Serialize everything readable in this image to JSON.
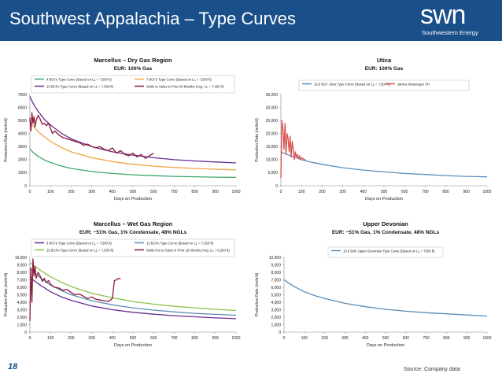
{
  "header": {
    "title": "Southwest Appalachia – Type Curves"
  },
  "logo": {
    "main": "swn",
    "sub": "Southwestern Energy"
  },
  "footer": {
    "slide_number": "18",
    "source": "Source: Company data"
  },
  "colors": {
    "header_bg": "#1a4f8a",
    "purple": "#6a2c91",
    "orange": "#f2a541",
    "green": "#3ea66a",
    "dark": "#2b2b2b",
    "maroon": "#8b1a3a",
    "blue": "#5b8db8"
  },
  "chart_data": [
    {
      "id": "marcellus-dry",
      "type": "line",
      "title": "Marcellus – Dry Gas Region",
      "subtitle": "EUR: 100% Gas",
      "xlabel": "Days on Production",
      "ylabel": "Production Rate (mcfe/d)",
      "xlim": [
        0,
        1000
      ],
      "ylim": [
        0,
        7000
      ],
      "xticks": [
        "0",
        "100",
        "200",
        "300",
        "400",
        "500",
        "600",
        "700",
        "800",
        "900",
        "1000"
      ],
      "yticks": [
        "0",
        "1000",
        "2000",
        "3000",
        "4000",
        "5000",
        "6000",
        "7000"
      ],
      "series": [
        {
          "name": "4 BCFe Type Curve (Based on LL = 7,500 ft)",
          "color": "#3ea66a",
          "x": [
            0,
            10,
            20,
            40,
            70,
            100,
            150,
            200,
            300,
            400,
            500,
            600,
            700,
            800,
            900,
            1000
          ],
          "y": [
            2850,
            2650,
            2500,
            2250,
            1980,
            1780,
            1520,
            1330,
            1090,
            940,
            840,
            770,
            720,
            690,
            660,
            640
          ]
        },
        {
          "name": "7 BCFe Type Curve (Based on LL = 7,500 ft)",
          "color": "#f2a541",
          "x": [
            0,
            10,
            20,
            40,
            70,
            100,
            150,
            200,
            300,
            400,
            500,
            600,
            700,
            800,
            900,
            1000
          ],
          "y": [
            4900,
            4700,
            4500,
            4150,
            3750,
            3400,
            2950,
            2600,
            2150,
            1850,
            1650,
            1500,
            1400,
            1330,
            1270,
            1220
          ]
        },
        {
          "name": "10 BCFe Type Curve (Based on LL = 7,500 ft)",
          "color": "#6a2c91",
          "x": [
            0,
            10,
            20,
            40,
            70,
            100,
            150,
            200,
            300,
            400,
            500,
            600,
            700,
            800,
            900,
            1000
          ],
          "y": [
            6850,
            6500,
            6200,
            5700,
            5100,
            4650,
            4050,
            3600,
            3000,
            2600,
            2350,
            2150,
            2000,
            1900,
            1820,
            1750
          ]
        },
        {
          "name": "Wells to Sales in Prior 20 Months (Avg. LL = 7,300 ft)",
          "color": "#8b1a3a",
          "x": [
            0,
            5,
            10,
            15,
            20,
            25,
            30,
            40,
            50,
            60,
            70,
            80,
            90,
            100,
            110,
            120,
            140,
            160,
            180,
            200,
            220,
            240,
            260,
            280,
            300,
            320,
            340,
            360,
            380,
            400,
            420,
            440,
            460,
            480,
            500,
            520,
            540,
            560,
            580,
            600
          ],
          "y": [
            5200,
            4200,
            5600,
            4800,
            5300,
            4500,
            5000,
            5400,
            5100,
            4700,
            4800,
            4600,
            4800,
            4400,
            4000,
            4200,
            3900,
            3700,
            3600,
            3500,
            3400,
            3300,
            3100,
            3200,
            3000,
            2900,
            3000,
            2800,
            2700,
            2900,
            2500,
            2700,
            2400,
            2300,
            2500,
            2200,
            2400,
            2100,
            2300,
            2500
          ]
        }
      ]
    },
    {
      "id": "utica",
      "type": "line",
      "title": "Utica",
      "subtitle": "EUR: 100% Gas",
      "xlabel": "Days on Production",
      "ylabel": "Production Rate (mcfe/d)",
      "xlim": [
        0,
        1000
      ],
      "ylim": [
        0,
        35000
      ],
      "xticks": [
        "0",
        "100",
        "200",
        "300",
        "400",
        "500",
        "600",
        "700",
        "800",
        "900",
        "1000"
      ],
      "yticks": [
        "0",
        "5,000",
        "10,000",
        "15,000",
        "20,000",
        "25,000",
        "30,000",
        "35,000"
      ],
      "series": [
        {
          "name": "16.5 BCF Utica Type Curve (Based on LL = 7,500 ft)",
          "color": "#5b8db8",
          "x": [
            0,
            20,
            50,
            100,
            150,
            200,
            300,
            400,
            500,
            600,
            700,
            800,
            900,
            1000
          ],
          "y": [
            13000,
            12300,
            11400,
            10000,
            9000,
            8200,
            6900,
            6000,
            5300,
            4700,
            4300,
            3900,
            3600,
            3400
          ]
        },
        {
          "name": "James Messenger 3H",
          "color": "#d9534f",
          "x": [
            0,
            5,
            10,
            15,
            20,
            25,
            30,
            35,
            40,
            45,
            50,
            55,
            60,
            65,
            70,
            75,
            80,
            85,
            90,
            95,
            100,
            110,
            120
          ],
          "y": [
            3000,
            25000,
            22000,
            14000,
            24000,
            12000,
            20000,
            18000,
            13000,
            19000,
            11000,
            17000,
            14000,
            10000,
            13000,
            11000,
            12000,
            10500,
            11500,
            10000,
            10800,
            10200,
            9800
          ]
        }
      ]
    },
    {
      "id": "marcellus-wet",
      "type": "line",
      "title": "Marcellus – Wet Gas Region",
      "subtitle": "EUR: ~51% Gas, 1% Condensate, 48% NGLs",
      "xlabel": "Days on Production",
      "ylabel": "Production Rate (mcfe/d)",
      "xlim": [
        0,
        1000
      ],
      "ylim": [
        0,
        10000
      ],
      "xticks": [
        "0",
        "100",
        "200",
        "300",
        "400",
        "500",
        "600",
        "700",
        "800",
        "900",
        "1000"
      ],
      "yticks": [
        "0",
        "1,000",
        "2,000",
        "3,000",
        "4,000",
        "5,000",
        "6,000",
        "7,000",
        "8,000",
        "9,000",
        "10,000"
      ],
      "series": [
        {
          "name": "9 BCFe Type Curve (Based on LL = 7,500 ft)",
          "color": "#6a2c91",
          "x": [
            0,
            20,
            50,
            100,
            150,
            200,
            300,
            400,
            500,
            600,
            700,
            800,
            900,
            1000
          ],
          "y": [
            7400,
            6900,
            6300,
            5400,
            4750,
            4250,
            3500,
            3000,
            2650,
            2400,
            2200,
            2050,
            1900,
            1800
          ]
        },
        {
          "name": "12 BCFe Type Curve (Based on LL = 7,500 ft)",
          "color": "#5b8db8",
          "x": [
            0,
            20,
            50,
            100,
            150,
            200,
            300,
            400,
            500,
            600,
            700,
            800,
            900,
            1000
          ],
          "y": [
            8500,
            8000,
            7300,
            6300,
            5600,
            5000,
            4200,
            3650,
            3250,
            2950,
            2700,
            2520,
            2380,
            2260
          ]
        },
        {
          "name": "15 BCFe Type Curve (Based on LL = 7,500 ft)",
          "color": "#8bc34a",
          "x": [
            0,
            20,
            50,
            100,
            150,
            200,
            300,
            400,
            500,
            600,
            700,
            800,
            900,
            1000
          ],
          "y": [
            9300,
            8900,
            8300,
            7400,
            6700,
            6100,
            5200,
            4600,
            4100,
            3750,
            3450,
            3250,
            3050,
            2900
          ]
        },
        {
          "name": "Wells Put to Sales in Prior 18 Months (Avg. LL = 6,200 ft)",
          "color": "#8b1a3a",
          "x": [
            0,
            5,
            10,
            15,
            20,
            25,
            30,
            40,
            50,
            60,
            70,
            80,
            90,
            100,
            120,
            140,
            160,
            180,
            200,
            220,
            240,
            260,
            280,
            300,
            320,
            340,
            360,
            380,
            400,
            410,
            420,
            430,
            440
          ],
          "y": [
            1500,
            8600,
            4000,
            9800,
            7500,
            8800,
            7200,
            8000,
            7500,
            6800,
            7200,
            6600,
            6900,
            6400,
            6000,
            5900,
            5600,
            5700,
            5300,
            5000,
            5100,
            4800,
            4500,
            4700,
            4400,
            4300,
            4200,
            4100,
            4500,
            6900,
            7000,
            7200,
            7100
          ]
        }
      ]
    },
    {
      "id": "upper-devonian",
      "type": "line",
      "title": "Upper Devonian",
      "subtitle": "EUR: ~51% Gas, 1% Condensate, 48% NGLs",
      "xlabel": "Days on Production",
      "ylabel": "Production Rate (mcfe/d)",
      "xlim": [
        0,
        1000
      ],
      "ylim": [
        0,
        10000
      ],
      "xticks": [
        "0",
        "100",
        "200",
        "300",
        "400",
        "500",
        "600",
        "700",
        "800",
        "900",
        "1000"
      ],
      "yticks": [
        "0",
        "1,000",
        "2,000",
        "3,000",
        "4,000",
        "5,000",
        "6,000",
        "7,000",
        "8,000",
        "9,000",
        "10,000"
      ],
      "series": [
        {
          "name": "10.6 Bcfe Upper Devonian Type Curve (Based on LL = 7500 ft)",
          "color": "#5b8db8",
          "x": [
            0,
            20,
            50,
            100,
            150,
            200,
            300,
            400,
            500,
            600,
            700,
            800,
            900,
            1000
          ],
          "y": [
            7000,
            6600,
            6100,
            5400,
            4900,
            4500,
            3850,
            3400,
            3050,
            2800,
            2600,
            2450,
            2300,
            2150
          ]
        }
      ]
    }
  ]
}
